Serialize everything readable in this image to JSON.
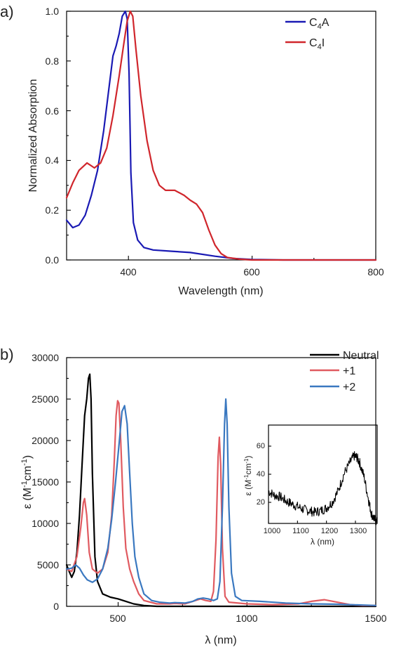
{
  "chart_data": [
    {
      "type": "line",
      "panel_label": "a)",
      "xlabel": "Wavelength (nm)",
      "ylabel": "Normalized Absorption",
      "xlim": [
        300,
        800
      ],
      "ylim": [
        0,
        1.0
      ],
      "xticks": [
        400,
        600,
        800
      ],
      "yticks": [
        0.0,
        0.2,
        0.4,
        0.6,
        0.8,
        1.0
      ],
      "ytick_labels": [
        "0.0",
        "0.2",
        "0.4",
        "0.6",
        "0.8",
        "1.0"
      ],
      "legend_position": "top-right",
      "grid": false,
      "series": [
        {
          "name": "C4A",
          "legend_main": "C",
          "legend_sub": "4",
          "legend_tail": "A",
          "color": "#1a1ab4",
          "points": [
            [
              300,
              0.16
            ],
            [
              310,
              0.13
            ],
            [
              320,
              0.14
            ],
            [
              330,
              0.18
            ],
            [
              340,
              0.26
            ],
            [
              350,
              0.36
            ],
            [
              360,
              0.52
            ],
            [
              370,
              0.72
            ],
            [
              375,
              0.82
            ],
            [
              380,
              0.86
            ],
            [
              385,
              0.91
            ],
            [
              390,
              0.98
            ],
            [
              395,
              1.0
            ],
            [
              398,
              0.97
            ],
            [
              401,
              0.75
            ],
            [
              404,
              0.35
            ],
            [
              408,
              0.15
            ],
            [
              415,
              0.08
            ],
            [
              425,
              0.05
            ],
            [
              440,
              0.04
            ],
            [
              470,
              0.035
            ],
            [
              500,
              0.03
            ],
            [
              540,
              0.015
            ],
            [
              570,
              0.006
            ],
            [
              600,
              0.002
            ],
            [
              650,
              0.0
            ],
            [
              800,
              0.0
            ]
          ]
        },
        {
          "name": "C4I",
          "legend_main": "C",
          "legend_sub": "4",
          "legend_tail": "I",
          "color": "#d0262c",
          "points": [
            [
              300,
              0.25
            ],
            [
              310,
              0.31
            ],
            [
              320,
              0.36
            ],
            [
              333,
              0.39
            ],
            [
              345,
              0.37
            ],
            [
              355,
              0.39
            ],
            [
              365,
              0.45
            ],
            [
              375,
              0.58
            ],
            [
              385,
              0.74
            ],
            [
              392,
              0.86
            ],
            [
              398,
              0.96
            ],
            [
              403,
              1.0
            ],
            [
              407,
              0.98
            ],
            [
              412,
              0.85
            ],
            [
              420,
              0.66
            ],
            [
              430,
              0.48
            ],
            [
              440,
              0.36
            ],
            [
              450,
              0.3
            ],
            [
              460,
              0.28
            ],
            [
              475,
              0.28
            ],
            [
              490,
              0.26
            ],
            [
              500,
              0.24
            ],
            [
              510,
              0.225
            ],
            [
              520,
              0.19
            ],
            [
              530,
              0.12
            ],
            [
              540,
              0.06
            ],
            [
              550,
              0.025
            ],
            [
              560,
              0.01
            ],
            [
              580,
              0.003
            ],
            [
              600,
              0.0
            ],
            [
              800,
              0.0
            ]
          ]
        }
      ]
    },
    {
      "type": "line",
      "panel_label": "b)",
      "xlabel": "λ (nm)",
      "ylabel_main": "ε (M",
      "ylabel_sup1": "-1",
      "ylabel_mid": "cm",
      "ylabel_sup2": "-1",
      "ylabel_end": ")",
      "xlim": [
        300,
        1500
      ],
      "ylim": [
        0,
        30000
      ],
      "xticks": [
        500,
        1000,
        1500
      ],
      "yticks": [
        0,
        5000,
        10000,
        15000,
        20000,
        25000,
        30000
      ],
      "legend_position": "top-right",
      "grid": false,
      "series": [
        {
          "name": "Neutral",
          "color": "#000000",
          "points": [
            [
              300,
              5000
            ],
            [
              310,
              4200
            ],
            [
              320,
              3500
            ],
            [
              330,
              4200
            ],
            [
              340,
              6500
            ],
            [
              350,
              11000
            ],
            [
              360,
              17000
            ],
            [
              370,
              23000
            ],
            [
              378,
              25000
            ],
            [
              385,
              27500
            ],
            [
              390,
              28000
            ],
            [
              395,
              25000
            ],
            [
              400,
              16000
            ],
            [
              410,
              6000
            ],
            [
              420,
              3000
            ],
            [
              440,
              1500
            ],
            [
              470,
              1100
            ],
            [
              500,
              900
            ],
            [
              530,
              600
            ],
            [
              560,
              300
            ],
            [
              600,
              100
            ],
            [
              650,
              0
            ],
            [
              1500,
              0
            ]
          ]
        },
        {
          "name": "+1",
          "color": "#e05a60",
          "points": [
            [
              300,
              4500
            ],
            [
              320,
              4200
            ],
            [
              340,
              6000
            ],
            [
              355,
              9500
            ],
            [
              365,
              12500
            ],
            [
              370,
              13000
            ],
            [
              378,
              11000
            ],
            [
              388,
              6500
            ],
            [
              400,
              4500
            ],
            [
              420,
              4000
            ],
            [
              440,
              4500
            ],
            [
              460,
              6500
            ],
            [
              475,
              11000
            ],
            [
              485,
              17500
            ],
            [
              492,
              23000
            ],
            [
              498,
              24800
            ],
            [
              503,
              24500
            ],
            [
              510,
              20000
            ],
            [
              520,
              12000
            ],
            [
              530,
              7000
            ],
            [
              545,
              4500
            ],
            [
              560,
              3000
            ],
            [
              580,
              1500
            ],
            [
              600,
              700
            ],
            [
              650,
              300
            ],
            [
              700,
              300
            ],
            [
              720,
              350
            ],
            [
              760,
              300
            ],
            [
              800,
              700
            ],
            [
              820,
              900
            ],
            [
              840,
              700
            ],
            [
              860,
              600
            ],
            [
              870,
              1800
            ],
            [
              880,
              8000
            ],
            [
              888,
              18000
            ],
            [
              893,
              20400
            ],
            [
              898,
              17000
            ],
            [
              905,
              7000
            ],
            [
              915,
              1200
            ],
            [
              930,
              500
            ],
            [
              1000,
              300
            ],
            [
              1100,
              200
            ],
            [
              1200,
              300
            ],
            [
              1250,
              600
            ],
            [
              1300,
              800
            ],
            [
              1350,
              500
            ],
            [
              1400,
              200
            ],
            [
              1450,
              100
            ],
            [
              1500,
              100
            ]
          ]
        },
        {
          "name": "+2",
          "color": "#3a78c0",
          "points": [
            [
              300,
              4500
            ],
            [
              320,
              4600
            ],
            [
              335,
              5000
            ],
            [
              350,
              4600
            ],
            [
              365,
              3800
            ],
            [
              380,
              3200
            ],
            [
              400,
              2900
            ],
            [
              420,
              3300
            ],
            [
              440,
              4500
            ],
            [
              460,
              7000
            ],
            [
              475,
              10500
            ],
            [
              490,
              15000
            ],
            [
              505,
              20000
            ],
            [
              515,
              23500
            ],
            [
              525,
              24200
            ],
            [
              535,
              22000
            ],
            [
              545,
              16000
            ],
            [
              555,
              10000
            ],
            [
              565,
              6000
            ],
            [
              580,
              3500
            ],
            [
              600,
              1500
            ],
            [
              630,
              700
            ],
            [
              660,
              500
            ],
            [
              700,
              400
            ],
            [
              720,
              450
            ],
            [
              760,
              400
            ],
            [
              790,
              600
            ],
            [
              810,
              900
            ],
            [
              830,
              1000
            ],
            [
              850,
              900
            ],
            [
              870,
              700
            ],
            [
              885,
              900
            ],
            [
              895,
              3000
            ],
            [
              905,
              12000
            ],
            [
              913,
              22000
            ],
            [
              918,
              25000
            ],
            [
              923,
              22000
            ],
            [
              930,
              12000
            ],
            [
              940,
              4000
            ],
            [
              955,
              1200
            ],
            [
              980,
              700
            ],
            [
              1050,
              600
            ],
            [
              1150,
              400
            ],
            [
              1250,
              300
            ],
            [
              1350,
              250
            ],
            [
              1450,
              150
            ],
            [
              1500,
              100
            ]
          ]
        }
      ]
    },
    {
      "type": "line",
      "panel_label": "",
      "xlabel": "λ (nm)",
      "ylabel_main": "ε (M",
      "ylabel_sup1": "-1",
      "ylabel_mid": "cm",
      "ylabel_sup2": "-1",
      "ylabel_end": ")",
      "xlim": [
        1000,
        1375
      ],
      "ylim": [
        5,
        75
      ],
      "xticks": [
        1000,
        1100,
        1200,
        1300
      ],
      "yticks": [
        20,
        40,
        60
      ],
      "grid": false,
      "series": [
        {
          "name": "",
          "color": "#000000",
          "points": [
            [
              1000,
              28
            ],
            [
              1020,
              25
            ],
            [
              1040,
              24
            ],
            [
              1060,
              21
            ],
            [
              1080,
              19
            ],
            [
              1100,
              17
            ],
            [
              1120,
              15
            ],
            [
              1140,
              14
            ],
            [
              1160,
              13
            ],
            [
              1180,
              14
            ],
            [
              1200,
              16
            ],
            [
              1220,
              20
            ],
            [
              1240,
              28
            ],
            [
              1260,
              40
            ],
            [
              1280,
              48
            ],
            [
              1295,
              53
            ],
            [
              1305,
              52
            ],
            [
              1315,
              48
            ],
            [
              1330,
              38
            ],
            [
              1345,
              22
            ],
            [
              1355,
              12
            ],
            [
              1365,
              8
            ],
            [
              1375,
              6
            ]
          ]
        }
      ]
    }
  ]
}
